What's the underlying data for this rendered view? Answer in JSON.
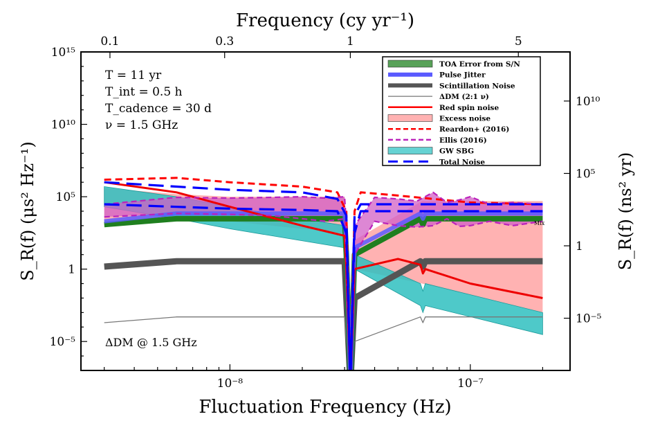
{
  "chart_data": {
    "type": "line",
    "title": "",
    "xlabel": "Fluctuation Frequency (Hz)",
    "ylabel": "S_R(f)  (μs² Hz⁻¹)",
    "x_scale": "log",
    "y_scale": "log",
    "xlim": [
      2.4e-09,
      2.6e-07
    ],
    "ylim": [
      1e-07,
      1000000000000000.0
    ],
    "x_ticks": [
      {
        "value": 1e-08,
        "label": "10⁻⁸"
      },
      {
        "value": 1e-07,
        "label": "10⁻⁷"
      }
    ],
    "y_ticks": [
      {
        "value": 1e-05,
        "label": "10⁻⁵"
      },
      {
        "value": 1,
        "label": "1"
      },
      {
        "value": 100000.0,
        "label": "10⁵"
      },
      {
        "value": 10000000000.0,
        "label": "10¹⁰"
      },
      {
        "value": 1000000000000000.0,
        "label": "10¹⁵"
      }
    ],
    "top_axis": {
      "label": "Frequency (cy yr⁻¹)",
      "ticks": [
        {
          "value": 0.1,
          "label": "0.1"
        },
        {
          "value": 0.3,
          "label": "0.3"
        },
        {
          "value": 1,
          "label": "1"
        },
        {
          "value": 5,
          "label": "5"
        }
      ]
    },
    "right_axis": {
      "label": "S_R(f)  (ns² yr)",
      "ticks": [
        {
          "value": 1e-05,
          "label": "10⁻⁵"
        },
        {
          "value": 1,
          "label": "1"
        },
        {
          "value": 100000.0,
          "label": "10⁵"
        },
        {
          "value": 10000000000.0,
          "label": "10¹⁰"
        }
      ]
    },
    "annotations": {
      "params": [
        "T = 11 yr",
        "T_int = 0.5 h",
        "T_cadence = 30 d",
        "ν = 1.5 GHz"
      ],
      "dm_note": "ΔDM @ 1.5 GHz",
      "mix_label": "Mix"
    },
    "legend": {
      "placement": "top-right",
      "entries": [
        {
          "label": "TOA Error from S/N",
          "color": "#2e8b2e",
          "style": "patch"
        },
        {
          "label": "Pulse Jitter",
          "color": "#5a5aff",
          "style": "thick"
        },
        {
          "label": "Scintillation Noise",
          "color": "#555555",
          "style": "thick"
        },
        {
          "label": "ΔDM (2:1 ν)",
          "color": "#777777",
          "style": "thin"
        },
        {
          "label": "Red spin noise",
          "color": "#ff0000",
          "style": "solid"
        },
        {
          "label": "Excess noise",
          "color": "#ff9f9f",
          "style": "patch"
        },
        {
          "label": "Reardon+ (2016)",
          "color": "#ff0000",
          "style": "dashed"
        },
        {
          "label": "Ellis (2016)",
          "color": "#bb22bb",
          "style": "dashed"
        },
        {
          "label": "GW SBG",
          "color": "#40c8c8",
          "style": "patch"
        },
        {
          "label": "Total Noise",
          "color": "#0000ff",
          "style": "dashed-thick"
        }
      ]
    },
    "notch_frequency": 3.17e-08,
    "annual_dip_frequency": 6.3e-08,
    "series": [
      {
        "name": "TOA Error from S/N",
        "color": "#2e8b2e",
        "x": [
          3e-09,
          6e-09,
          3e-08,
          3.05e-08,
          3.17e-08,
          3.3e-08,
          6.2e-08,
          6.35e-08,
          6.5e-08,
          2e-07
        ],
        "y": [
          1200.0,
          3000.0,
          3000.0,
          10.0,
          1e-08,
          10.0,
          3000.0,
          1200.0,
          3000.0,
          3000.0
        ]
      },
      {
        "name": "Pulse Jitter",
        "color": "#5a5aff",
        "x": [
          3e-09,
          6e-09,
          3e-08,
          3.05e-08,
          3.17e-08,
          3.3e-08,
          6.2e-08,
          6.35e-08,
          6.5e-08,
          2e-07
        ],
        "y": [
          2000.0,
          7000.0,
          7000.0,
          30.0,
          1e-08,
          30.0,
          7000.0,
          3000.0,
          7000.0,
          7000.0
        ]
      },
      {
        "name": "Scintillation Noise",
        "color": "#555555",
        "x": [
          3e-09,
          6e-09,
          3e-08,
          3.05e-08,
          3.17e-08,
          3.3e-08,
          6.2e-08,
          6.35e-08,
          6.5e-08,
          2e-07
        ],
        "y": [
          1.5,
          3.5,
          3.5,
          0.01,
          1e-08,
          0.01,
          3.5,
          1.5,
          3.5,
          3.5
        ]
      },
      {
        "name": "ΔDM (2:1 ν)",
        "color": "#777777",
        "x": [
          3e-09,
          6e-09,
          3e-08,
          3.05e-08,
          3.17e-08,
          3.3e-08,
          6.2e-08,
          6.35e-08,
          6.5e-08,
          2e-07
        ],
        "y": [
          0.0002,
          0.0005,
          0.0005,
          1e-05,
          1e-07,
          1e-05,
          0.0005,
          0.0002,
          0.0005,
          0.0005
        ]
      },
      {
        "name": "Red spin noise",
        "color": "#ff0000",
        "x": [
          3e-09,
          6e-09,
          1e-08,
          2e-08,
          3e-08,
          3.05e-08,
          3.17e-08,
          3.3e-08,
          5e-08,
          6.2e-08,
          6.35e-08,
          6.5e-08,
          1e-07,
          2e-07
        ],
        "y": [
          1000000.0,
          200000.0,
          20000.0,
          1000.0,
          200.0,
          1.0,
          1e-08,
          1.0,
          5.0,
          2.0,
          0.5,
          1.0,
          0.1,
          0.01
        ]
      },
      {
        "name": "Excess noise upper",
        "color": "#ff9f9f",
        "x": [
          3e-09,
          6e-09,
          1e-08,
          3e-08,
          3.05e-08,
          3.17e-08,
          3.3e-08,
          6.3e-08,
          2e-07
        ],
        "y": [
          400000.0,
          150000.0,
          100000.0,
          100000.0,
          100.0,
          1e-08,
          100.0,
          50000.0,
          50000.0
        ]
      },
      {
        "name": "Excess noise lower",
        "color": "#ff9f9f",
        "x": [
          3e-09,
          6e-09,
          1e-08,
          3e-08,
          3.05e-08,
          3.17e-08,
          3.3e-08,
          6.3e-08,
          2e-07
        ],
        "y": [
          2000.0,
          3000.0,
          2000.0,
          300.0,
          1.0,
          1e-08,
          1.0,
          0.1,
          0.001
        ]
      },
      {
        "name": "Reardon+ (2016)",
        "color": "#ff0000",
        "x": [
          3e-09,
          6e-09,
          1e-08,
          2e-08,
          2.8e-08,
          3.05e-08,
          3.17e-08,
          3.3e-08,
          3.5e-08,
          5e-08,
          1e-07,
          2e-07
        ],
        "y": [
          1500000.0,
          2000000.0,
          1000000.0,
          500000.0,
          200000.0,
          10000.0,
          1e-08,
          10000.0,
          200000.0,
          120000.0,
          40000.0,
          30000.0
        ]
      },
      {
        "name": "Ellis (2016) upper",
        "color": "#bb22bb",
        "x": [
          3e-09,
          6e-09,
          1e-08,
          1.5e-08,
          2e-08,
          2.5e-08,
          3e-08,
          3.05e-08,
          3.17e-08,
          3.3e-08,
          4e-08,
          5e-08,
          6e-08,
          7e-08,
          8e-08,
          9e-08,
          1e-07,
          1.2e-07,
          1.5e-07,
          2e-07
        ],
        "y": [
          30000.0,
          90000.0,
          80000.0,
          90000.0,
          100000.0,
          80000.0,
          100000.0,
          1000.0,
          1e-08,
          1000.0,
          90000.0,
          70000.0,
          50000.0,
          200000.0,
          40000.0,
          60000.0,
          100000.0,
          30000.0,
          40000.0,
          30000.0
        ]
      },
      {
        "name": "Ellis (2016) lower",
        "color": "#bb22bb",
        "x": [
          3e-09,
          6e-09,
          1e-08,
          1.5e-08,
          2e-08,
          2.5e-08,
          3e-08,
          3.05e-08,
          3.17e-08,
          3.3e-08,
          4e-08,
          5e-08,
          6e-08,
          7e-08,
          8e-08,
          9e-08,
          1e-07,
          1.2e-07,
          1.5e-07,
          2e-07
        ],
        "y": [
          4000.0,
          7000.0,
          6000.0,
          5000.0,
          3000.0,
          2000.0,
          3000.0,
          10.0,
          1e-08,
          10.0,
          2000.0,
          1000.0,
          800.0,
          1000.0,
          3000.0,
          900.0,
          1000.0,
          2000.0,
          1000.0,
          2000.0
        ]
      },
      {
        "name": "GW SBG upper",
        "color": "#40c8c8",
        "x": [
          3e-09,
          6e-09,
          1e-08,
          3e-08,
          3.05e-08,
          3.17e-08,
          3.3e-08,
          6.2e-08,
          6.35e-08,
          6.5e-08,
          2e-07
        ],
        "y": [
          500000.0,
          100000.0,
          20000.0,
          1000.0,
          10.0,
          1e-08,
          10.0,
          0.1,
          0.03,
          0.1,
          0.001
        ]
      },
      {
        "name": "GW SBG lower",
        "color": "#40c8c8",
        "x": [
          3e-09,
          6e-09,
          1e-08,
          3e-08,
          3.05e-08,
          3.17e-08,
          3.3e-08,
          6.2e-08,
          6.35e-08,
          6.5e-08,
          2e-07
        ],
        "y": [
          20000.0,
          3000.0,
          600.0,
          30.0,
          1.0,
          1e-08,
          1.0,
          0.003,
          0.001,
          0.003,
          3e-05
        ]
      },
      {
        "name": "Total Noise upper",
        "color": "#0000ff",
        "x": [
          3e-09,
          6e-09,
          1e-08,
          2e-08,
          2.8e-08,
          3.05e-08,
          3.17e-08,
          3.3e-08,
          3.5e-08,
          6.3e-08,
          2e-07
        ],
        "y": [
          1000000.0,
          500000.0,
          300000.0,
          200000.0,
          70000.0,
          5000.0,
          1e-08,
          5000.0,
          30000.0,
          30000.0,
          30000.0
        ]
      },
      {
        "name": "Total Noise lower",
        "color": "#0000ff",
        "x": [
          3e-09,
          6e-09,
          1e-08,
          2e-08,
          2.8e-08,
          3.05e-08,
          3.17e-08,
          3.3e-08,
          3.5e-08,
          6.3e-08,
          2e-07
        ],
        "y": [
          30000.0,
          20000.0,
          15000.0,
          12000.0,
          10000.0,
          300.0,
          1e-08,
          300.0,
          10000.0,
          10000.0,
          10000.0
        ]
      }
    ]
  }
}
